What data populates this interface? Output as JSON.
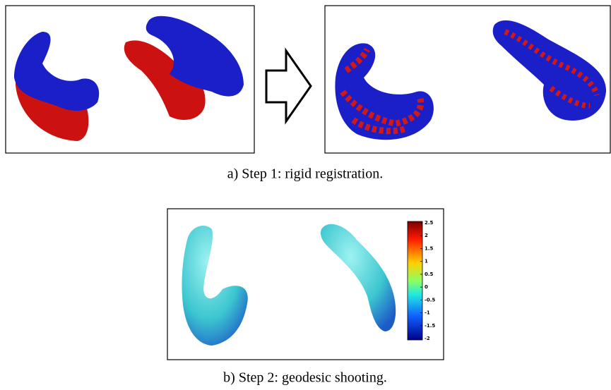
{
  "figure_a": {
    "caption": "a) Step 1: rigid registration."
  },
  "figure_b": {
    "caption": "b) Step 2: geodesic shooting.",
    "colorbar": {
      "range": [
        -2,
        2.5
      ],
      "ticks": [
        2.5,
        2,
        1.5,
        1,
        0.5,
        0,
        -0.5,
        -1,
        -1.5,
        -2
      ]
    }
  }
}
